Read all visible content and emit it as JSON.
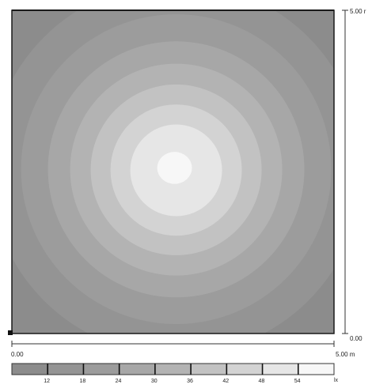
{
  "plot": {
    "x_start_label": "0.00",
    "x_end_label": "5.00 m",
    "y_top_label": "5.00 r",
    "y_bottom_label": "0.00"
  },
  "legend": {
    "ticks": [
      "12",
      "18",
      "24",
      "30",
      "36",
      "42",
      "48",
      "54"
    ],
    "unit": "lx",
    "colors": [
      "#8c8c8c",
      "#949494",
      "#9c9c9c",
      "#a7a7a7",
      "#b3b3b3",
      "#c2c2c2",
      "#d3d3d3",
      "#e6e6e6",
      "#f7f7f7"
    ]
  },
  "contours": {
    "center": [
      2.55,
      2.55
    ],
    "levels": [
      12,
      18,
      24,
      30,
      36,
      42,
      48,
      54
    ]
  }
}
